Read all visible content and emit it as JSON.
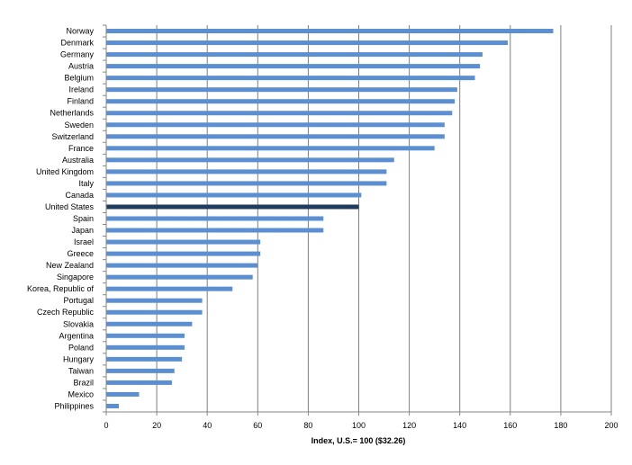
{
  "chart_data": {
    "type": "bar",
    "orientation": "horizontal",
    "categories": [
      "Norway",
      "Denmark",
      "Germany",
      "Austria",
      "Belgium",
      "Ireland",
      "Finland",
      "Netherlands",
      "Sweden",
      "Switzerland",
      "France",
      "Australia",
      "United Kingdom",
      "Italy",
      "Canada",
      "United States",
      "Spain",
      "Japan",
      "Israel",
      "Greece",
      "New Zealand",
      "Singapore",
      "Korea, Republic of",
      "Portugal",
      "Czech Republic",
      "Slovakia",
      "Argentina",
      "Poland",
      "Hungary",
      "Taiwan",
      "Brazil",
      "Mexico",
      "Philippines"
    ],
    "values": [
      177,
      159,
      149,
      148,
      146,
      139,
      138,
      137,
      134,
      134,
      130,
      114,
      111,
      111,
      101,
      100,
      86,
      86,
      61,
      61,
      60,
      58,
      50,
      38,
      38,
      34,
      31,
      31,
      30,
      27,
      26,
      13,
      5
    ],
    "highlight": "United States",
    "xlabel": "Index, U.S.= 100 ($32.26)",
    "ylabel": "",
    "title": "",
    "xlim": [
      0,
      200
    ],
    "xticks": [
      0,
      20,
      40,
      60,
      80,
      100,
      120,
      140,
      160,
      180,
      200
    ],
    "grid": "vertical",
    "legend": "none",
    "colors": {
      "bar": "#5b8fd1",
      "highlight": "#1f3c5e",
      "grid": "#7f7f7f",
      "axis": "#868686"
    }
  }
}
